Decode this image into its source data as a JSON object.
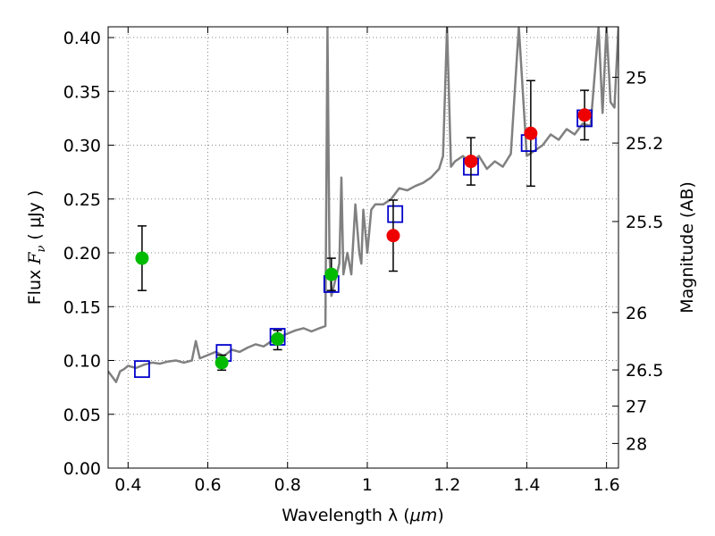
{
  "chart_data": {
    "type": "scatter",
    "title": "",
    "xlabel_prefix": "Wavelength  λ (",
    "xlabel_unit": "μm",
    "xlabel_suffix": ")",
    "ylabel_prefix": "Flux  ",
    "ylabel_var": "F",
    "ylabel_sub": "ν",
    "ylabel_suffix": "  ( μJy )",
    "y2label": "Magnitude (AB)",
    "xlim": [
      0.35,
      1.63
    ],
    "ylim": [
      0.0,
      0.41
    ],
    "grid": true,
    "x_ticks": [
      0.4,
      0.6,
      0.8,
      1.0,
      1.2,
      1.4,
      1.6
    ],
    "x_tick_labels": [
      "0.4",
      "0.6",
      "0.8",
      "1",
      "1.2",
      "1.4",
      "1.6"
    ],
    "y_ticks": [
      0.0,
      0.05,
      0.1,
      0.15,
      0.2,
      0.25,
      0.3,
      0.35,
      0.4
    ],
    "y_tick_labels": [
      "0.00",
      "0.05",
      "0.10",
      "0.15",
      "0.20",
      "0.25",
      "0.30",
      "0.35",
      "0.40"
    ],
    "mag_ticks": [
      25,
      25.2,
      25.5,
      26,
      26.5,
      27,
      28
    ],
    "mag_tick_labels": [
      "25",
      "25.2",
      "25.5",
      "26",
      "26.5",
      "27",
      "28"
    ],
    "colors": {
      "spectrum": "#808080",
      "model": "#0000cc",
      "optical": "#00bb00",
      "infrared": "#ee0000",
      "error": "#000000",
      "grid": "#888888"
    },
    "spectrum": {
      "x": [
        0.35,
        0.36,
        0.37,
        0.38,
        0.39,
        0.4,
        0.42,
        0.44,
        0.46,
        0.48,
        0.5,
        0.52,
        0.54,
        0.56,
        0.57,
        0.58,
        0.6,
        0.62,
        0.64,
        0.66,
        0.68,
        0.7,
        0.72,
        0.74,
        0.76,
        0.78,
        0.8,
        0.82,
        0.84,
        0.86,
        0.88,
        0.895,
        0.9,
        0.905,
        0.91,
        0.92,
        0.93,
        0.935,
        0.94,
        0.95,
        0.96,
        0.97,
        0.98,
        0.985,
        0.99,
        1.0,
        1.01,
        1.02,
        1.04,
        1.06,
        1.08,
        1.1,
        1.12,
        1.14,
        1.16,
        1.18,
        1.19,
        1.2,
        1.21,
        1.22,
        1.24,
        1.26,
        1.28,
        1.3,
        1.32,
        1.34,
        1.36,
        1.38,
        1.4,
        1.42,
        1.44,
        1.46,
        1.48,
        1.5,
        1.52,
        1.54,
        1.56,
        1.58,
        1.59,
        1.6,
        1.61,
        1.62,
        1.63
      ],
      "y": [
        0.09,
        0.085,
        0.08,
        0.09,
        0.092,
        0.095,
        0.093,
        0.096,
        0.098,
        0.097,
        0.099,
        0.1,
        0.098,
        0.1,
        0.118,
        0.102,
        0.105,
        0.108,
        0.104,
        0.11,
        0.108,
        0.112,
        0.115,
        0.113,
        0.118,
        0.122,
        0.125,
        0.128,
        0.13,
        0.127,
        0.13,
        0.132,
        0.41,
        0.2,
        0.16,
        0.175,
        0.19,
        0.27,
        0.18,
        0.2,
        0.18,
        0.245,
        0.2,
        0.19,
        0.24,
        0.2,
        0.24,
        0.245,
        0.245,
        0.25,
        0.26,
        0.258,
        0.262,
        0.265,
        0.27,
        0.278,
        0.29,
        0.41,
        0.28,
        0.285,
        0.29,
        0.283,
        0.29,
        0.278,
        0.285,
        0.28,
        0.292,
        0.41,
        0.29,
        0.295,
        0.3,
        0.31,
        0.305,
        0.315,
        0.31,
        0.32,
        0.318,
        0.41,
        0.33,
        0.41,
        0.34,
        0.335,
        0.41
      ]
    },
    "series": [
      {
        "name": "",
        "marker": "open-square",
        "x": [
          0.435,
          0.64,
          0.775,
          0.91,
          1.07,
          1.26,
          1.405,
          1.545
        ],
        "y": [
          0.092,
          0.107,
          0.122,
          0.171,
          0.236,
          0.28,
          0.302,
          0.325
        ]
      },
      {
        "name": "",
        "marker": "filled-circle",
        "color_key": "optical",
        "x": [
          0.435,
          0.635,
          0.775,
          0.91
        ],
        "y": [
          0.195,
          0.098,
          0.12,
          0.18
        ],
        "err_low": [
          0.03,
          0.007,
          0.01,
          0.015
        ],
        "err_high": [
          0.03,
          0.007,
          0.008,
          0.015
        ]
      },
      {
        "name": "",
        "marker": "filled-circle",
        "color_key": "infrared",
        "x": [
          1.065,
          1.26,
          1.41,
          1.545
        ],
        "y": [
          0.216,
          0.285,
          0.311,
          0.328
        ],
        "err_low": [
          0.033,
          0.022,
          0.049,
          0.023
        ],
        "err_high": [
          0.033,
          0.022,
          0.049,
          0.023
        ]
      }
    ]
  }
}
